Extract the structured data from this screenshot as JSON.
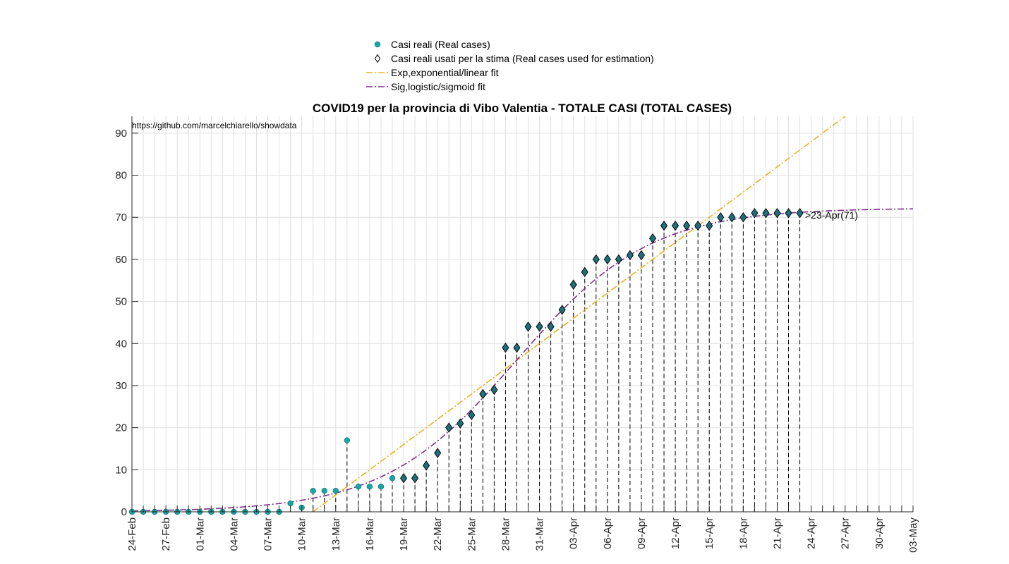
{
  "chart_data": {
    "type": "scatter",
    "title": "COVID19 per la provincia di Vibo Valentia - TOTALE CASI (TOTAL CASES)",
    "xlabel": "",
    "ylabel": "",
    "source_note": "https://github.com/marcelchiarello/showdata",
    "annotation": ">23-Apr(71)",
    "x_start_date": "24-Feb",
    "x_tick_labels": [
      "24-Feb",
      "27-Feb",
      "01-Mar",
      "04-Mar",
      "07-Mar",
      "10-Mar",
      "13-Mar",
      "16-Mar",
      "19-Mar",
      "22-Mar",
      "25-Mar",
      "28-Mar",
      "31-Mar",
      "03-Apr",
      "06-Apr",
      "09-Apr",
      "12-Apr",
      "15-Apr",
      "18-Apr",
      "21-Apr",
      "24-Apr",
      "27-Apr",
      "30-Apr",
      "03-May"
    ],
    "y_tick_labels": [
      "0",
      "10",
      "20",
      "30",
      "40",
      "50",
      "60",
      "70",
      "80",
      "90"
    ],
    "y_ticks": [
      0,
      10,
      20,
      30,
      40,
      50,
      60,
      70,
      80,
      90
    ],
    "xlim": [
      "24-Feb",
      "03-May"
    ],
    "ylim": [
      0,
      94
    ],
    "grid": true,
    "legend_position": "top-center",
    "legend": [
      {
        "label": "Casi reali (Real cases)",
        "marker": "circle"
      },
      {
        "label": "Casi reali usati per la stima (Real cases used for estimation)",
        "marker": "diamond"
      },
      {
        "label": "Exp,exponential/linear fit",
        "marker": "dashdot-line"
      },
      {
        "label": "Sig,logistic/sigmoid fit",
        "marker": "dashdot-line"
      }
    ],
    "colors": {
      "real": "#1aa5a5",
      "estimation_diamond": "#1f6f7a",
      "exp_fit": "#edb120",
      "sig_fit": "#7e2f8e",
      "grid": "#e0e0e0",
      "axis": "#262626"
    },
    "series": [
      {
        "name": "Casi reali (Real cases)",
        "x": [
          "24-Feb",
          "25-Feb",
          "26-Feb",
          "27-Feb",
          "28-Feb",
          "29-Feb",
          "01-Mar",
          "02-Mar",
          "03-Mar",
          "04-Mar",
          "05-Mar",
          "06-Mar",
          "07-Mar",
          "08-Mar",
          "09-Mar",
          "10-Mar",
          "11-Mar",
          "12-Mar",
          "13-Mar",
          "14-Mar",
          "15-Mar",
          "16-Mar",
          "17-Mar",
          "18-Mar",
          "19-Mar",
          "20-Mar",
          "21-Mar",
          "22-Mar",
          "23-Mar",
          "24-Mar",
          "25-Mar",
          "26-Mar",
          "27-Mar",
          "28-Mar",
          "29-Mar",
          "30-Mar",
          "31-Mar",
          "01-Apr",
          "02-Apr",
          "03-Apr",
          "04-Apr",
          "05-Apr",
          "06-Apr",
          "07-Apr",
          "08-Apr",
          "09-Apr",
          "10-Apr",
          "11-Apr",
          "12-Apr",
          "13-Apr",
          "14-Apr",
          "15-Apr",
          "16-Apr",
          "17-Apr",
          "18-Apr",
          "19-Apr",
          "20-Apr",
          "21-Apr",
          "22-Apr",
          "23-Apr"
        ],
        "values": [
          0,
          0,
          0,
          0,
          0,
          0,
          0,
          0,
          0,
          0,
          0,
          0,
          0,
          0,
          2,
          1,
          5,
          5,
          5,
          17,
          6,
          6,
          6,
          8,
          8,
          8,
          11,
          14,
          20,
          21,
          23,
          28,
          29,
          39,
          39,
          44,
          44,
          44,
          48,
          54,
          57,
          60,
          60,
          60,
          61,
          61,
          65,
          68,
          68,
          68,
          68,
          68,
          70,
          70,
          70,
          71,
          71,
          71,
          71,
          71
        ]
      },
      {
        "name": "Casi reali usati per la stima (Real cases used for estimation)",
        "x": [
          "19-Mar",
          "20-Mar",
          "21-Mar",
          "22-Mar",
          "23-Mar",
          "24-Mar",
          "25-Mar",
          "26-Mar",
          "27-Mar",
          "28-Mar",
          "29-Mar",
          "30-Mar",
          "31-Mar",
          "01-Apr",
          "02-Apr",
          "03-Apr",
          "04-Apr",
          "05-Apr",
          "06-Apr",
          "07-Apr",
          "08-Apr",
          "09-Apr",
          "10-Apr",
          "11-Apr",
          "12-Apr",
          "13-Apr",
          "14-Apr",
          "15-Apr",
          "16-Apr",
          "17-Apr",
          "18-Apr",
          "19-Apr",
          "20-Apr",
          "21-Apr",
          "22-Apr",
          "23-Apr"
        ],
        "values": [
          8,
          8,
          11,
          14,
          20,
          21,
          23,
          28,
          29,
          39,
          39,
          44,
          44,
          44,
          48,
          54,
          57,
          60,
          60,
          60,
          61,
          61,
          65,
          68,
          68,
          68,
          68,
          68,
          70,
          70,
          70,
          71,
          71,
          71,
          71,
          71
        ]
      },
      {
        "name": "Exp,exponential/linear fit",
        "x": [
          "11-Mar",
          "27-Apr"
        ],
        "values": [
          0,
          94
        ]
      },
      {
        "name": "Sig,logistic/sigmoid fit",
        "params": {
          "L": 72.2,
          "k": 0.17,
          "x0": "29-Mar"
        },
        "x": [
          "24-Feb",
          "03-May"
        ]
      }
    ]
  }
}
